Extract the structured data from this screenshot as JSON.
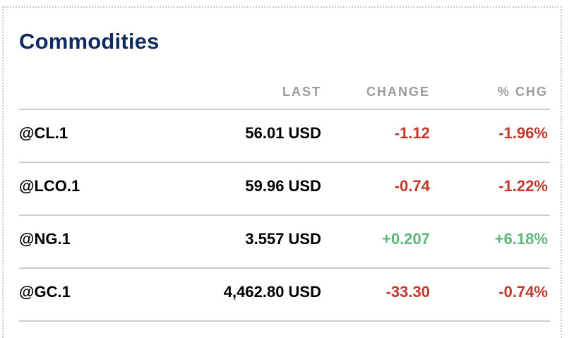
{
  "title": "Commodities",
  "columns": {
    "last": "LAST",
    "change": "CHANGE",
    "pct": "% CHG"
  },
  "colors": {
    "negative": "#c0392b",
    "positive": "#5cb87a",
    "title": "#0f2a63"
  },
  "rows": [
    {
      "symbol": "@CL.1",
      "last": "56.01 USD",
      "change": "-1.12",
      "pct": "-1.96%",
      "direction": "neg"
    },
    {
      "symbol": "@LCO.1",
      "last": "59.96 USD",
      "change": "-0.74",
      "pct": "-1.22%",
      "direction": "neg"
    },
    {
      "symbol": "@NG.1",
      "last": "3.557 USD",
      "change": "+0.207",
      "pct": "+6.18%",
      "direction": "pos"
    },
    {
      "symbol": "@GC.1",
      "last": "4,462.80 USD",
      "change": "-33.30",
      "pct": "-0.74%",
      "direction": "neg"
    }
  ]
}
